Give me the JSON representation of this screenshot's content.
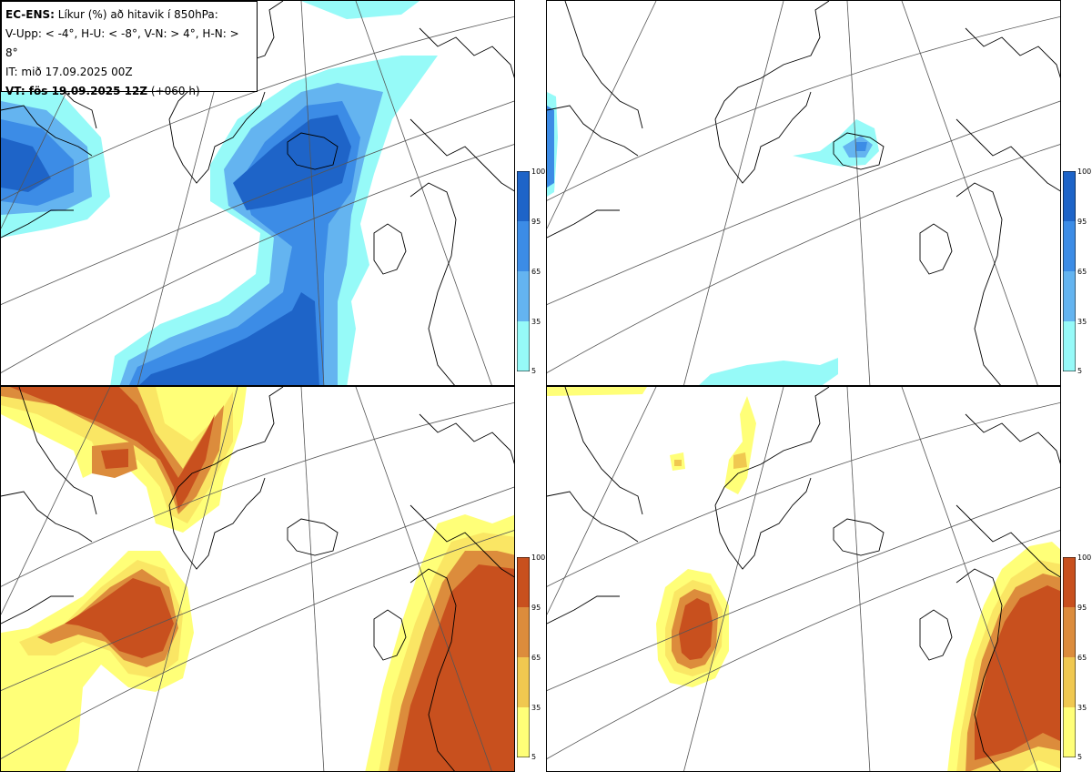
{
  "legend": {
    "model": "EC-ENS:",
    "title": "Líkur (%) að hitavik í 850hPa:",
    "thresholds": "V-Upp: < -4°, H-U: < -8°, V-N: > 4°, H-N: > 8°",
    "it_label": "IT: mið 17.09.2025 00Z",
    "vt_label": "VT: fös 19.09.2025 12Z",
    "lead": "(+060 h)"
  },
  "colorbar_cold": {
    "ticks": [
      "100",
      "95",
      "65",
      "35",
      "5"
    ],
    "colors": [
      "#1e64c8",
      "#3c8ce6",
      "#64b4f0",
      "#8cdcf5",
      "#96faf8"
    ]
  },
  "colorbar_warm": {
    "ticks": [
      "100",
      "95",
      "65",
      "35",
      "5"
    ],
    "colors": [
      "#c8501e",
      "#dc8c3c",
      "#f0c850",
      "#fae664",
      "#ffff78"
    ]
  },
  "panels": [
    {
      "id": "V-Upp",
      "scheme": "cold"
    },
    {
      "id": "H-U",
      "scheme": "cold"
    },
    {
      "id": "V-N",
      "scheme": "warm"
    },
    {
      "id": "H-N",
      "scheme": "warm"
    }
  ]
}
